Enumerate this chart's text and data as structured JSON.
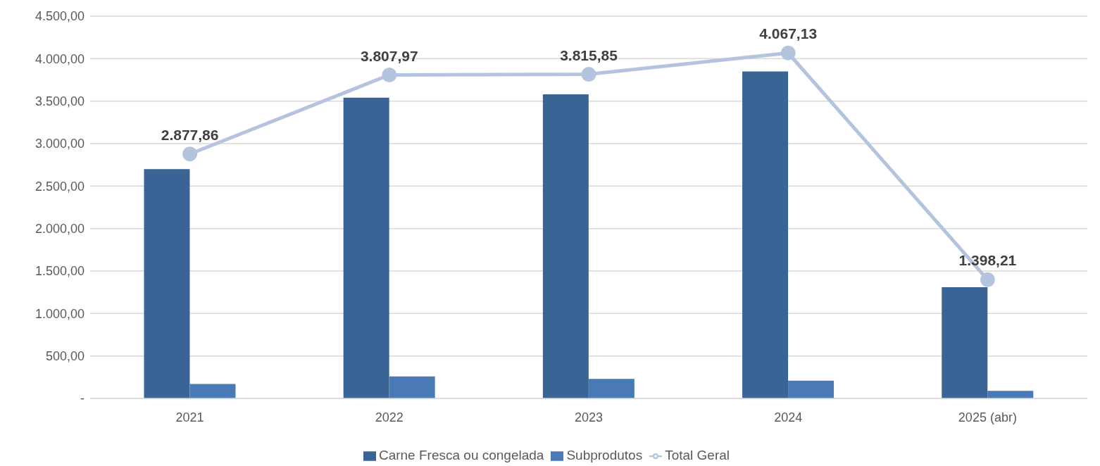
{
  "chart_data": {
    "type": "bar",
    "categories": [
      "2021",
      "2022",
      "2023",
      "2024",
      "2025 (abr)"
    ],
    "series": [
      {
        "name": "Carne Fresca ou congelada",
        "color": "#3b6496",
        "values": [
          2700,
          3540,
          3580,
          3850,
          1310
        ]
      },
      {
        "name": "Subprodutos",
        "color": "#4a7ab5",
        "values": [
          170,
          260,
          230,
          210,
          90
        ]
      },
      {
        "name": "Total Geral",
        "type": "line",
        "color": "#b4c3de",
        "values": [
          2877.86,
          3807.97,
          3815.85,
          4067.13,
          1398.21
        ],
        "value_labels": [
          "2.877,86",
          "3.807,97",
          "3.815,85",
          "4.067,13",
          "1.398,21"
        ]
      }
    ],
    "ylim": [
      0,
      4500
    ],
    "yticks": [
      {
        "value": 0,
        "label": "-"
      },
      {
        "value": 500,
        "label": "500,00"
      },
      {
        "value": 1000,
        "label": "1.000,00"
      },
      {
        "value": 1500,
        "label": "1.500,00"
      },
      {
        "value": 2000,
        "label": "2.000,00"
      },
      {
        "value": 2500,
        "label": "2.500,00"
      },
      {
        "value": 3000,
        "label": "3.000,00"
      },
      {
        "value": 3500,
        "label": "3.500,00"
      },
      {
        "value": 4000,
        "label": "4.000,00"
      },
      {
        "value": 4500,
        "label": "4.500,00"
      }
    ],
    "grid": "y",
    "legend": "bottom",
    "marker": "circle",
    "line_style": "solid"
  }
}
